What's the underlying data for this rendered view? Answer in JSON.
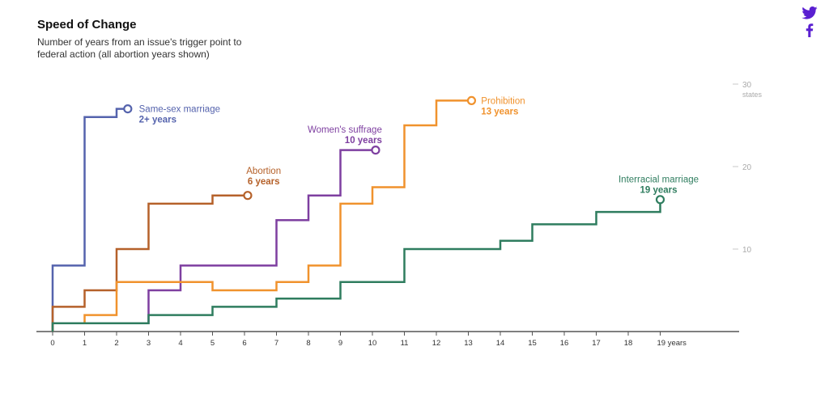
{
  "header": {
    "title": "Speed of Change",
    "subtitle": "Number of years from an issue's trigger point to federal action (all abortion years shown)"
  },
  "social": {
    "icons": [
      "twitter-icon",
      "facebook-icon"
    ],
    "color": "#5a1fd1"
  },
  "chart_data": {
    "type": "line",
    "step": true,
    "title": "Speed of Change",
    "xlabel": "years",
    "ylabel": "states",
    "xlim": [
      0,
      21.2
    ],
    "ylim": [
      0,
      30
    ],
    "x_ticks": [
      {
        "value": 0,
        "label": "0"
      },
      {
        "value": 1,
        "label": "1"
      },
      {
        "value": 2,
        "label": "2"
      },
      {
        "value": 3,
        "label": "3"
      },
      {
        "value": 4,
        "label": "4"
      },
      {
        "value": 5,
        "label": "5"
      },
      {
        "value": 6,
        "label": "6"
      },
      {
        "value": 7,
        "label": "7"
      },
      {
        "value": 8,
        "label": "8"
      },
      {
        "value": 9,
        "label": "9"
      },
      {
        "value": 10,
        "label": "10"
      },
      {
        "value": 11,
        "label": "11"
      },
      {
        "value": 12,
        "label": "12"
      },
      {
        "value": 13,
        "label": "13"
      },
      {
        "value": 14,
        "label": "14"
      },
      {
        "value": 15,
        "label": "15"
      },
      {
        "value": 16,
        "label": "16"
      },
      {
        "value": 17,
        "label": "17"
      },
      {
        "value": 18,
        "label": "18"
      },
      {
        "value": 19,
        "label": "19 years"
      }
    ],
    "y_ticks": [
      {
        "value": 10,
        "label": "10"
      },
      {
        "value": 20,
        "label": "20"
      },
      {
        "value": 30,
        "label": "30"
      }
    ],
    "y_unit_label": "states",
    "series": [
      {
        "name": "Same-sex marriage",
        "duration": "2+ years",
        "color": "#5563ad",
        "points": [
          [
            0,
            0
          ],
          [
            0,
            8
          ],
          [
            1,
            8
          ],
          [
            1,
            26
          ],
          [
            2,
            26
          ],
          [
            2,
            27
          ],
          [
            2.35,
            27
          ]
        ],
        "label_anchor": "start",
        "label_at": [
          2.7,
          27
        ]
      },
      {
        "name": "Abortion",
        "duration": "6 years",
        "color": "#b5612a",
        "points": [
          [
            0,
            0
          ],
          [
            0,
            3
          ],
          [
            1,
            3
          ],
          [
            1,
            5
          ],
          [
            2,
            5
          ],
          [
            2,
            10
          ],
          [
            3,
            10
          ],
          [
            3,
            15.5
          ],
          [
            5,
            15.5
          ],
          [
            5,
            16.5
          ],
          [
            6.1,
            16.5
          ]
        ],
        "label_anchor": "middle",
        "label_at": [
          6.6,
          19.5
        ]
      },
      {
        "name": "Women's suffrage",
        "duration": "10 years",
        "color": "#7e3fa0",
        "points": [
          [
            0,
            0
          ],
          [
            0,
            1
          ],
          [
            3,
            1
          ],
          [
            3,
            5
          ],
          [
            4,
            5
          ],
          [
            4,
            8
          ],
          [
            7,
            8
          ],
          [
            7,
            13.5
          ],
          [
            8,
            13.5
          ],
          [
            8,
            16.5
          ],
          [
            9,
            16.5
          ],
          [
            9,
            22
          ],
          [
            10.1,
            22
          ]
        ],
        "label_anchor": "end",
        "label_at": [
          10.3,
          24.5
        ]
      },
      {
        "name": "Prohibition",
        "duration": "13 years",
        "color": "#f0922d",
        "points": [
          [
            0,
            0
          ],
          [
            0,
            1
          ],
          [
            1,
            1
          ],
          [
            1,
            2
          ],
          [
            2,
            2
          ],
          [
            2,
            6
          ],
          [
            5,
            6
          ],
          [
            5,
            5
          ],
          [
            7,
            5
          ],
          [
            7,
            6
          ],
          [
            8,
            6
          ],
          [
            8,
            8
          ],
          [
            9,
            8
          ],
          [
            9,
            15.5
          ],
          [
            10,
            15.5
          ],
          [
            10,
            17.5
          ],
          [
            11,
            17.5
          ],
          [
            11,
            25
          ],
          [
            12,
            25
          ],
          [
            12,
            28
          ],
          [
            13.1,
            28
          ]
        ],
        "label_anchor": "start",
        "label_at": [
          13.4,
          28
        ]
      },
      {
        "name": "Interracial marriage",
        "duration": "19 years",
        "color": "#2f7d5f",
        "points": [
          [
            0,
            0
          ],
          [
            0,
            1
          ],
          [
            3,
            1
          ],
          [
            3,
            2
          ],
          [
            5,
            2
          ],
          [
            5,
            3
          ],
          [
            7,
            3
          ],
          [
            7,
            4
          ],
          [
            9,
            4
          ],
          [
            9,
            6
          ],
          [
            11,
            6
          ],
          [
            11,
            10
          ],
          [
            14,
            10
          ],
          [
            14,
            11
          ],
          [
            15,
            11
          ],
          [
            15,
            13
          ],
          [
            17,
            13
          ],
          [
            17,
            14.5
          ],
          [
            19,
            14.5
          ],
          [
            19,
            16
          ]
        ],
        "label_anchor": "middle",
        "label_at": [
          18.95,
          18.5
        ]
      }
    ]
  }
}
